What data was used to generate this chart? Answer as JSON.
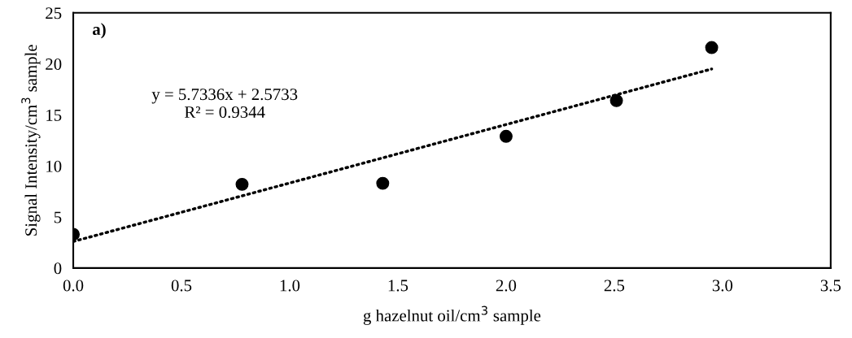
{
  "chart_data": {
    "type": "scatter",
    "xlabel": "g hazelnut oil/cm$^{3}$ sample",
    "ylabel": "Signal Intensity/cm$^{3}$ sample",
    "xlim": [
      0,
      3.5
    ],
    "xticks": [
      {
        "value": 0,
        "label": "0.0"
      },
      {
        "value": 0.5,
        "label": "0.5"
      },
      {
        "value": 1,
        "label": "1.0"
      },
      {
        "value": 1.5,
        "label": "1.5"
      },
      {
        "value": 2,
        "label": "2.0"
      },
      {
        "value": 2.5,
        "label": "2.5"
      },
      {
        "value": 3,
        "label": "3.0"
      },
      {
        "value": 3.5,
        "label": "3.5"
      }
    ],
    "ylim": [
      0,
      25
    ],
    "yticks": [
      0,
      5,
      10,
      15,
      20,
      25
    ],
    "grid": false,
    "series": [
      {
        "color": "#000000",
        "marker": "circle",
        "x": [
          0,
          0.78,
          1.43,
          2.0,
          2.51,
          2.95
        ],
        "values": [
          3.3,
          8.2,
          8.3,
          12.9,
          16.4,
          21.6
        ]
      },
      {
        "type": "line",
        "color": "#000000",
        "marker": "none",
        "line_style": "dotted",
        "x": [
          0,
          2.95
        ],
        "values": [
          2.6,
          19.5
        ]
      }
    ],
    "annotations": [
      "a)",
      "y = 5.7336x + 2.5733\nR² = 0.9344"
    ]
  }
}
